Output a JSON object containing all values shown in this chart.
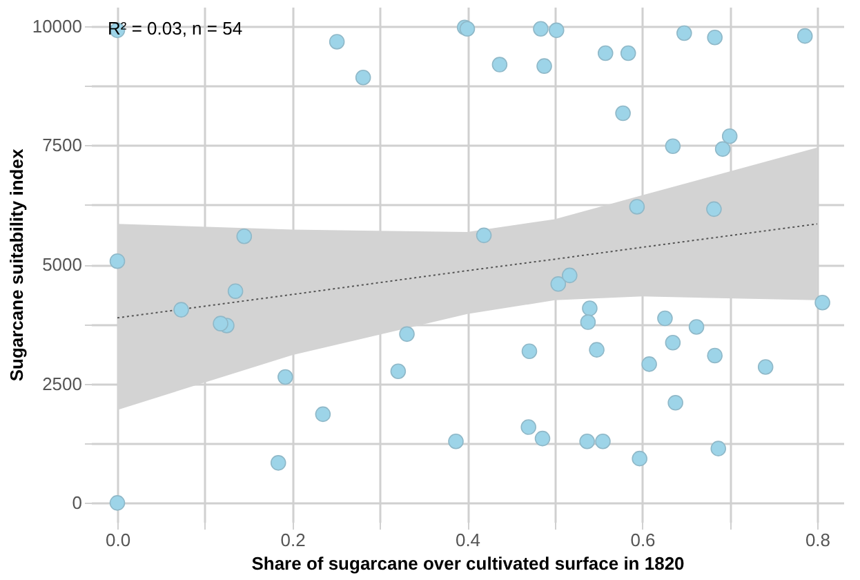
{
  "chart_data": {
    "type": "scatter",
    "xlabel": "Share of sugarcane over cultivated surface in 1820",
    "ylabel": "Sugarcane suitability index",
    "annotations": [
      "R² = 0.03, n = 54"
    ],
    "series": [
      {
        "type": "scatter",
        "color": "#9dd4e8",
        "marker": "circle",
        "x": [
          0,
          0.251,
          0.281,
          0.397,
          0.145,
          0,
          0.4,
          0.484,
          0.502,
          0.437,
          0.488,
          0.558,
          0.584,
          0.648,
          0.683,
          0.786,
          0.578,
          0.635,
          0.7,
          0.692,
          0.594,
          0.682,
          0.419,
          0.135,
          0.073,
          0.125,
          0.118,
          0.331,
          0.321,
          0.192,
          0.235,
          0.184,
          0.387,
          0,
          0.504,
          0.517,
          0.54,
          0.538,
          0.806,
          0.626,
          0.662,
          0.635,
          0.683,
          0.741,
          0.471,
          0.548,
          0.608,
          0.638,
          0.47,
          0.486,
          0.537,
          0.555,
          0.597,
          0.687
        ],
        "values": [
          9910,
          9670,
          8920,
          9970,
          5590,
          5070,
          9940,
          9940,
          9910,
          9190,
          9160,
          9430,
          9430,
          9850,
          9760,
          9790,
          8170,
          7480,
          7690,
          7420,
          6210,
          6160,
          5610,
          4440,
          4050,
          3720,
          3760,
          3540,
          2760,
          2640,
          1860,
          840,
          1290,
          0,
          4590,
          4770,
          4080,
          3790,
          4200,
          3870,
          3690,
          3360,
          3090,
          2850,
          3180,
          3210,
          2910,
          2100,
          1590,
          1350,
          1290,
          1290,
          930,
          1140
        ]
      },
      {
        "type": "line",
        "color": "#555555",
        "line_style": "dotted",
        "x": [
          0,
          0.2,
          0.4,
          0.5,
          0.6,
          0.8
        ],
        "values": [
          3880,
          4370,
          4870,
          5110,
          5360,
          5850
        ],
        "lower": [
          1950,
          3100,
          3960,
          4250,
          4330,
          4250
        ],
        "upper": [
          5850,
          5730,
          5680,
          5950,
          6450,
          7450
        ]
      }
    ],
    "grid": true,
    "xlim": [
      -0.03,
      0.83
    ],
    "ylim": [
      -400,
      10400
    ],
    "xticks": [
      {
        "value": 0,
        "label": "0.0"
      },
      {
        "value": 0.1,
        "label": null
      },
      {
        "value": 0.2,
        "label": "0.2"
      },
      {
        "value": 0.3,
        "label": null
      },
      {
        "value": 0.4,
        "label": "0.4"
      },
      {
        "value": 0.5,
        "label": null
      },
      {
        "value": 0.6,
        "label": "0.6"
      },
      {
        "value": 0.7,
        "label": null
      },
      {
        "value": 0.8,
        "label": "0.8"
      }
    ],
    "yticks": [
      0,
      {
        "value": 1250,
        "label": null
      },
      2500,
      {
        "value": 3750,
        "label": null
      },
      5000,
      {
        "value": 6250,
        "label": null
      },
      7500,
      {
        "value": 8750,
        "label": null
      },
      10000
    ]
  }
}
